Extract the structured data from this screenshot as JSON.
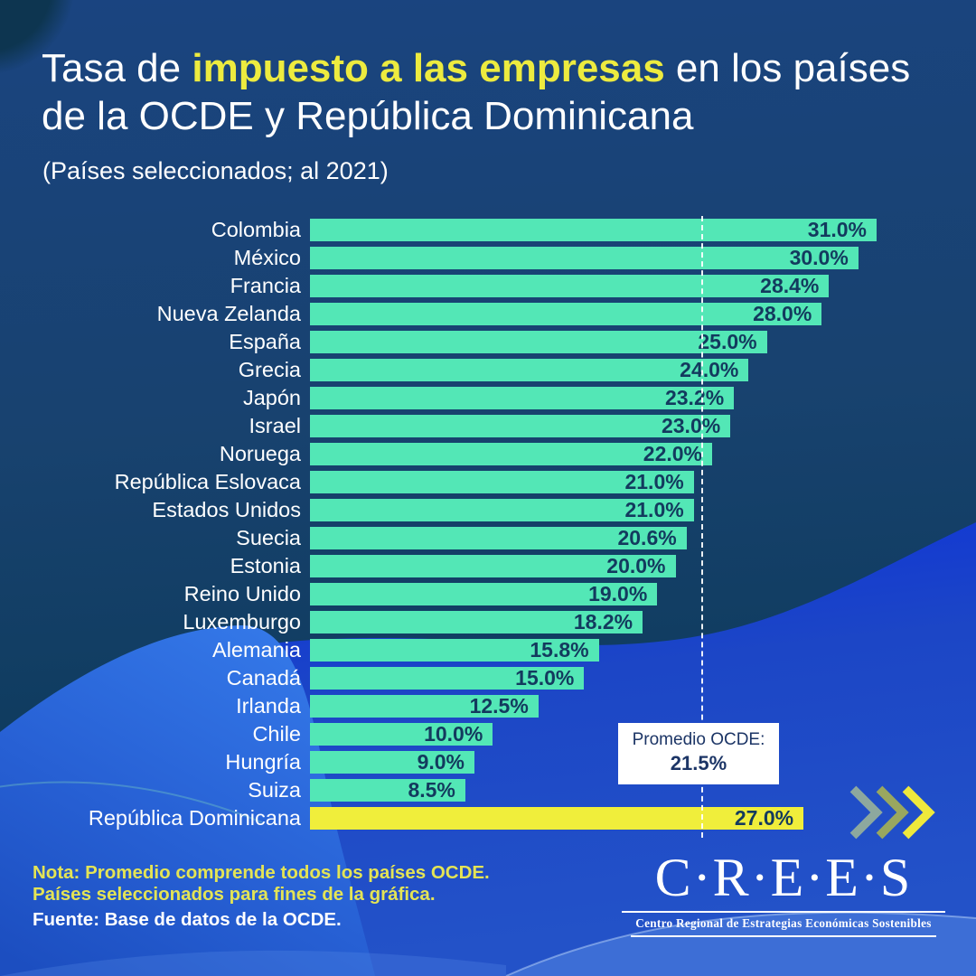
{
  "header": {
    "title_prefix": "Tasa de ",
    "title_highlight": "impuesto a las empresas",
    "title_suffix": " en los países de la OCDE y República Dominicana",
    "subtitle": "(Países seleccionados; al 2021)"
  },
  "chart_data": {
    "type": "bar",
    "orientation": "horizontal",
    "title": "Tasa de impuesto a las empresas en los países de la OCDE y República Dominicana",
    "subtitle": "(Países seleccionados; al 2021)",
    "unit": "%",
    "xlim": [
      0,
      31
    ],
    "grid": false,
    "legend": "none",
    "categories": [
      "Colombia",
      "México",
      "Francia",
      "Nueva Zelanda",
      "España",
      "Grecia",
      "Japón",
      "Israel",
      "Noruega",
      "República Eslovaca",
      "Estados Unidos",
      "Suecia",
      "Estonia",
      "Reino Unido",
      "Luxemburgo",
      "Alemania",
      "Canadá",
      "Irlanda",
      "Chile",
      "Hungría",
      "Suiza",
      "República Dominicana"
    ],
    "values": [
      31.0,
      30.0,
      28.4,
      28.0,
      25.0,
      24.0,
      23.2,
      23.0,
      22.0,
      21.0,
      21.0,
      20.6,
      20.0,
      19.0,
      18.2,
      15.8,
      15.0,
      12.5,
      10.0,
      9.0,
      8.5,
      27.0
    ],
    "value_labels": [
      "31.0%",
      "30.0%",
      "28.4%",
      "28.0%",
      "25.0%",
      "24.0%",
      "23.2%",
      "23.0%",
      "22.0%",
      "21.0%",
      "21.0%",
      "20.6%",
      "20.0%",
      "19.0%",
      "18.2%",
      "15.8%",
      "15.0%",
      "12.5%",
      "10.0%",
      "9.0%",
      "8.5%",
      "27.0%"
    ],
    "highlight_category": "República Dominicana",
    "average": {
      "label": "Promedio OCDE:",
      "value": 21.5,
      "value_label": "21.5%",
      "line_style": "dashed"
    }
  },
  "average_box": {
    "label": "Promedio OCDE:",
    "value": "21.5%"
  },
  "footer": {
    "note_line1": "Nota: Promedio comprende todos los países OCDE.",
    "note_line2": "Países seleccionados para fines de la gráfica.",
    "source": "Fuente: Base de datos de la OCDE."
  },
  "logo": {
    "wordmark": "C·R·E·E·S",
    "tagline": "Centro Regional de Estrategias Económicas Sostenibles"
  },
  "colors": {
    "bar": "#53E7B6",
    "bar_highlight": "#F0EE3B",
    "bar_value_text": "#133A5E",
    "title_highlight": "#EDEB3F",
    "notes_yellow": "#E4E455",
    "avg_box_text": "#1C3566",
    "background_top": "#1A4480",
    "background_deep": "#0D3A5C",
    "wave_blue": "#1C46C6",
    "wave_light_blue": "#3273E4",
    "white": "#FFFFFF",
    "chevron_1": "#8DA89E",
    "chevron_2": "#99A75F",
    "chevron_3": "#EFE93C"
  }
}
